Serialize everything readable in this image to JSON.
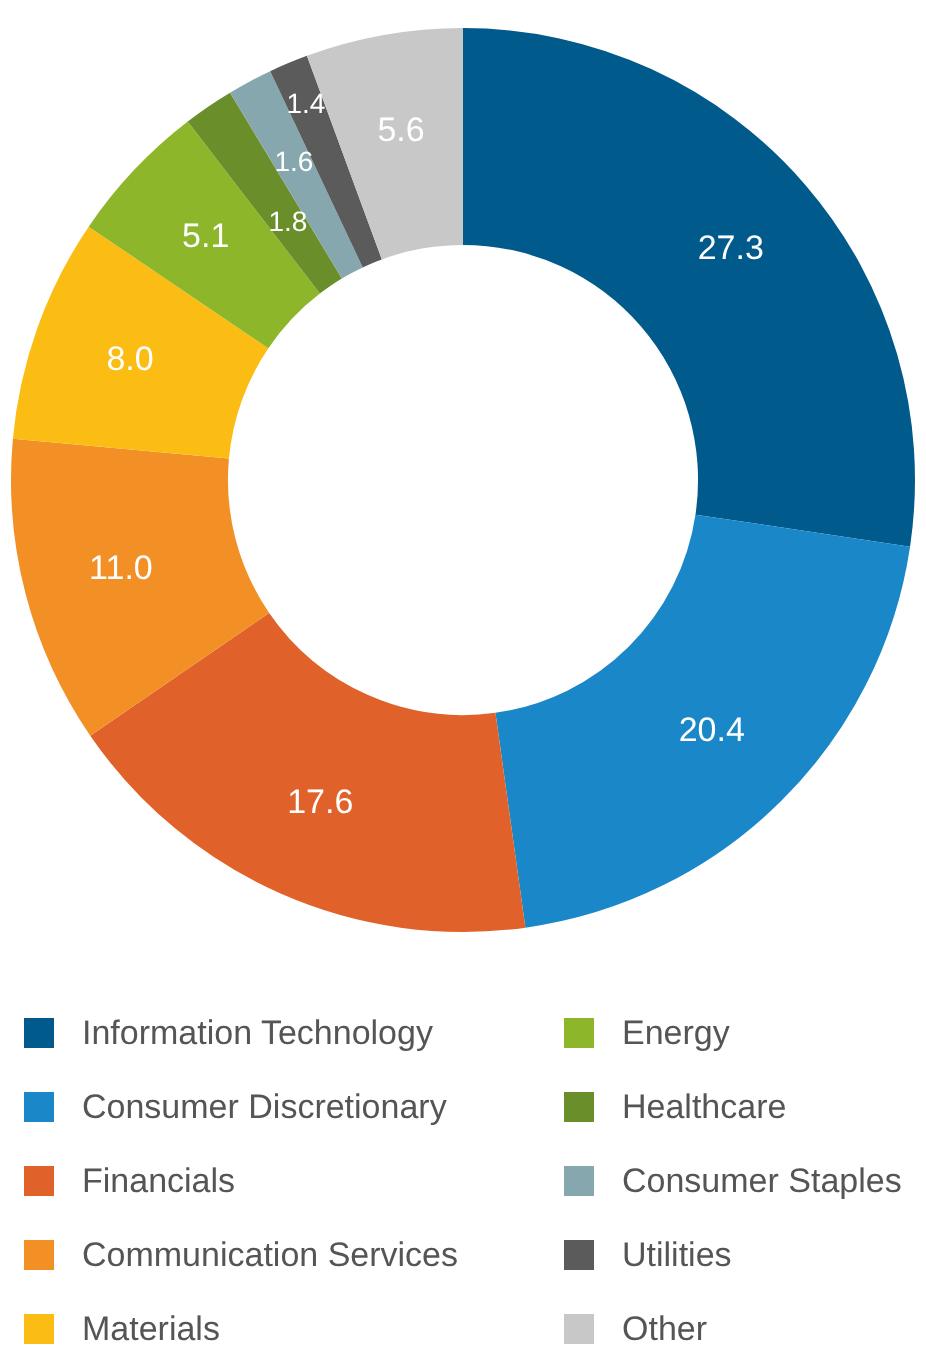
{
  "chart_data": {
    "type": "donut",
    "categories": [
      "Information Technology",
      "Consumer Discretionary",
      "Financials",
      "Communication Services",
      "Materials",
      "Energy",
      "Healthcare",
      "Consumer Staples",
      "Utilities",
      "Other"
    ],
    "values": [
      27.3,
      20.4,
      17.6,
      11.0,
      8.0,
      5.1,
      1.8,
      1.6,
      1.4,
      5.6
    ],
    "colors": [
      "#005a8c",
      "#1a87c9",
      "#e0622a",
      "#f28f25",
      "#fbbd13",
      "#8db62b",
      "#6a8f2a",
      "#86a7ad",
      "#5b5b5b",
      "#c8c8c8"
    ],
    "value_labels": [
      "27.3",
      "20.4",
      "17.6",
      "11.0",
      "8.0",
      "5.1",
      "1.8",
      "1.6",
      "1.4",
      "5.6"
    ],
    "legend": "bottom"
  }
}
